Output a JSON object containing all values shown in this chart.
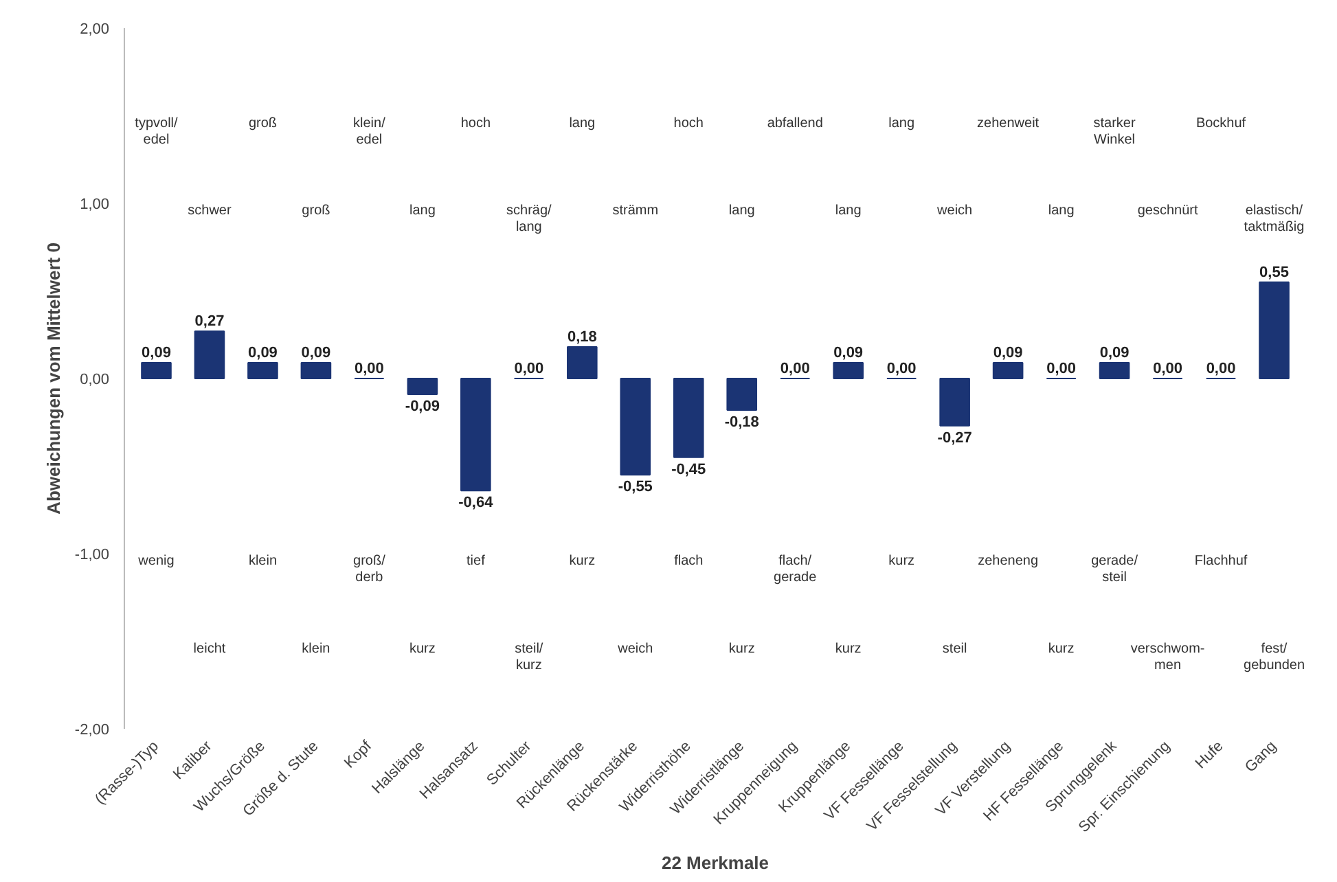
{
  "chart_data": {
    "type": "bar",
    "categories": [
      "(Rasse-)Typ",
      "Kaliber",
      "Wuchs/Größe",
      "Größe d. Stute",
      "Kopf",
      "Halslänge",
      "Halsansatz",
      "Schulter",
      "Rückenlänge",
      "Rückenstärke",
      "Widerristhöhe",
      "Widerristlänge",
      "Kruppenneigung",
      "Kruppenlänge",
      "VF Fessellänge",
      "VF Fesselstellung",
      "VF Verstellung",
      "HF Fessellänge",
      "Sprunggelenk",
      "Spr. Einschienung",
      "Hufe",
      "Gang"
    ],
    "values": [
      0.09,
      0.27,
      0.09,
      0.09,
      0.0,
      -0.09,
      -0.64,
      0.0,
      0.18,
      -0.55,
      -0.45,
      -0.18,
      0.0,
      0.09,
      0.0,
      -0.27,
      0.09,
      0.0,
      0.09,
      0.0,
      0.0,
      0.55
    ],
    "value_labels": [
      "0,09",
      "0,27",
      "0,09",
      "0,09",
      "0,00",
      "-0,09",
      "-0,64",
      "0,00",
      "0,18",
      "-0,55",
      "-0,45",
      "-0,18",
      "0,00",
      "0,09",
      "0,00",
      "-0,27",
      "0,09",
      "0,00",
      "0,09",
      "0,00",
      "0,00",
      "0,55"
    ],
    "color": "#1b3474",
    "xlabel": "22 Merkmale",
    "ylabel": "Abweichungen vom Mittelwert 0",
    "ylim": [
      -2,
      2
    ],
    "yticks": [
      {
        "value": -2,
        "label": "-2,00"
      },
      {
        "value": -1,
        "label": "-1,00"
      },
      {
        "value": 0,
        "label": "0,00"
      },
      {
        "value": 1,
        "label": "1,00"
      },
      {
        "value": 2,
        "label": "2,00"
      }
    ],
    "grid": false,
    "annotations": [
      "typvoll/\nedel",
      "groß",
      "klein/\nedel",
      "hoch",
      "lang",
      "hoch",
      "abfallend",
      "lang",
      "zehenweit",
      "starker\nWinkel",
      "Bockhuf",
      "schwer",
      "groß",
      "lang",
      "schräg/\nlang",
      "strämm",
      "lang",
      "lang",
      "weich",
      "lang",
      "geschnürt",
      "elastisch/\ntaktmäßig",
      "wenig",
      "klein",
      "groß/\nderb",
      "tief",
      "kurz",
      "flach",
      "flach/\ngerade",
      "kurz",
      "zeheneng",
      "gerade/\nsteil",
      "Flachhuf",
      "leicht",
      "klein",
      "kurz",
      "steil/\nkurz",
      "weich",
      "kurz",
      "kurz",
      "steil",
      "kurz",
      "verschwom-\nmen",
      "fest/\ngebunden"
    ]
  }
}
